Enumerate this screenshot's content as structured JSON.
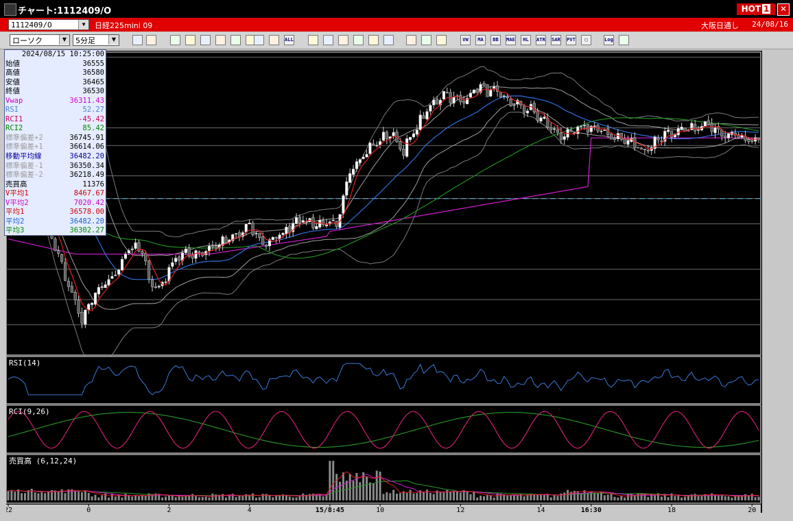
{
  "window": {
    "title": "チャート:1112409/O",
    "hot_label": "HOT",
    "hot_num": "1",
    "close_symbol": "✕"
  },
  "header": {
    "symbol_value": "1112409/O",
    "instrument_name": "日経225mini 09",
    "market_status": "大阪日通し",
    "date": "24/08/16"
  },
  "toolbar": {
    "chart_type": "ローソク",
    "interval": "5分足",
    "buttons": [
      "zoom",
      "grid",
      "arrows",
      "cross",
      "chart",
      "draw",
      "fill",
      "sep1",
      "box",
      "box2",
      "ALL",
      "pen",
      "pen2",
      "cursor",
      "hand",
      "print",
      "trash",
      "tool",
      "wrench",
      "palette",
      "VW",
      "MA",
      "BB",
      "MAE",
      "HL",
      "ATR",
      "SAR",
      "PVT",
      "PP",
      "Log",
      "export"
    ]
  },
  "info_panel": {
    "datetime": "2024/08/15  10:25:00",
    "rows": [
      {
        "label": "始値",
        "value": "36555",
        "color": "#000000"
      },
      {
        "label": "高値",
        "value": "36580",
        "color": "#000000"
      },
      {
        "label": "安値",
        "value": "36465",
        "color": "#000000"
      },
      {
        "label": "終値",
        "value": "36530",
        "color": "#000000"
      },
      {
        "label": "Vwap",
        "value": "36311.43",
        "color": "#cc00cc"
      },
      {
        "label": "RSI",
        "value": "52.27",
        "color": "#4a7fd6"
      },
      {
        "label": "RCI1",
        "value": "-45.42",
        "color": "#cc0066"
      },
      {
        "label": "RCI2",
        "value": "85.42",
        "color": "#008800"
      },
      {
        "label": "標準偏差+2",
        "value": "36745.91",
        "color": "#9a9a9a"
      },
      {
        "label": "標準偏差+1",
        "value": "36614.06",
        "color": "#9a9a9a"
      },
      {
        "label": "移動平均線",
        "value": "36482.20",
        "color": "#000099"
      },
      {
        "label": "標準偏差-1",
        "value": "36350.34",
        "color": "#9a9a9a"
      },
      {
        "label": "標準偏差-2",
        "value": "36218.49",
        "color": "#9a9a9a"
      },
      {
        "label": "売買高",
        "value": "11376",
        "color": "#000000"
      },
      {
        "label": "V平均1",
        "value": "8467.67",
        "color": "#cc0000"
      },
      {
        "label": "V平均2",
        "value": "7020.42",
        "color": "#cc00cc"
      },
      {
        "label": "平均1",
        "value": "36578.00",
        "color": "#cc0000"
      },
      {
        "label": "平均2",
        "value": "36482.20",
        "color": "#1a5fd6"
      },
      {
        "label": "平均3",
        "value": "36302.27",
        "color": "#008800"
      }
    ]
  },
  "chart_data": {
    "type": "candlestick",
    "price_axis_ticks": [
      "36800",
      "36600",
      "36400",
      "36200",
      "36000",
      "35800"
    ],
    "price_range": [
      35760,
      36960
    ],
    "x_ticks": [
      {
        "label": "22",
        "bar": 0
      },
      {
        "label": "0",
        "bar": 24
      },
      {
        "label": "2",
        "bar": 48
      },
      {
        "label": "4",
        "bar": 72
      },
      {
        "label": "15/8:45",
        "bar": 96
      },
      {
        "label": "10",
        "bar": 111
      },
      {
        "label": "12",
        "bar": 135
      },
      {
        "label": "14",
        "bar": 159
      },
      {
        "label": "16:30",
        "bar": 174
      },
      {
        "label": "18",
        "bar": 198
      },
      {
        "label": "20",
        "bar": 222
      }
    ],
    "bar_count": 225,
    "close_keypoints": [
      [
        0,
        36640
      ],
      [
        3,
        36700
      ],
      [
        8,
        36440
      ],
      [
        14,
        36190
      ],
      [
        20,
        35960
      ],
      [
        22,
        35900
      ],
      [
        26,
        36000
      ],
      [
        32,
        36080
      ],
      [
        36,
        36190
      ],
      [
        40,
        36170
      ],
      [
        42,
        36060
      ],
      [
        45,
        36020
      ],
      [
        50,
        36150
      ],
      [
        58,
        36170
      ],
      [
        68,
        36230
      ],
      [
        72,
        36270
      ],
      [
        76,
        36200
      ],
      [
        82,
        36240
      ],
      [
        86,
        36300
      ],
      [
        92,
        36280
      ],
      [
        96,
        36280
      ],
      [
        98,
        36260
      ],
      [
        102,
        36500
      ],
      [
        108,
        36580
      ],
      [
        114,
        36640
      ],
      [
        118,
        36570
      ],
      [
        124,
        36710
      ],
      [
        130,
        36800
      ],
      [
        135,
        36760
      ],
      [
        140,
        36820
      ],
      [
        145,
        36800
      ],
      [
        150,
        36760
      ],
      [
        156,
        36730
      ],
      [
        162,
        36660
      ],
      [
        166,
        36620
      ],
      [
        172,
        36670
      ],
      [
        178,
        36640
      ],
      [
        186,
        36600
      ],
      [
        190,
        36570
      ],
      [
        196,
        36640
      ],
      [
        200,
        36640
      ],
      [
        206,
        36660
      ],
      [
        210,
        36670
      ],
      [
        214,
        36640
      ],
      [
        218,
        36630
      ],
      [
        222,
        36610
      ]
    ],
    "rsi_pane": {
      "label": "RSI(14)",
      "ticks": [
        "80.00",
        "20.00"
      ]
    },
    "rci_pane": {
      "label": "RCI(9,26)",
      "ticks": [
        "80.00",
        "0.00",
        "-80.00"
      ]
    },
    "volume_pane": {
      "label": "売買高 (6,12,24)",
      "ticks": [
        "20000",
        "10000",
        "0"
      ]
    },
    "reference_lines": [
      36940,
      36660,
      36590,
      36470,
      36380,
      36280,
      36100,
      35980,
      35880
    ],
    "dashed_line": 36380
  }
}
